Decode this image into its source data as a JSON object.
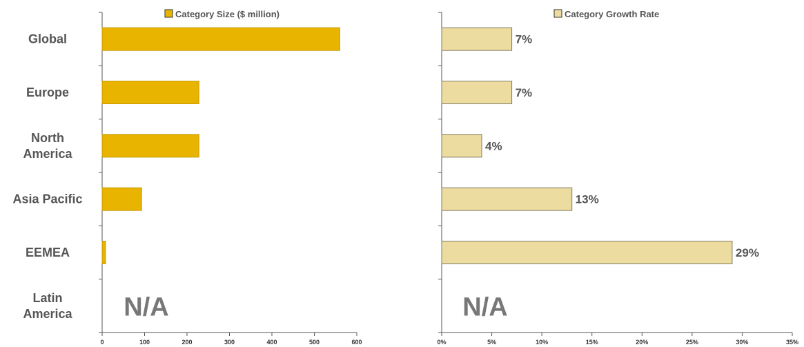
{
  "chart_data": [
    {
      "type": "bar",
      "orientation": "horizontal",
      "legend": "Category Size ($ million)",
      "legend_position": "top",
      "categories": [
        "Global",
        "Europe",
        "North\nAmerica",
        "Asia Pacific",
        "EEMEA",
        "Latin\nAmerica"
      ],
      "values": [
        560,
        228,
        228,
        93,
        8,
        null
      ],
      "xlim": [
        0,
        600
      ],
      "xticks": [
        "0",
        "100",
        "200",
        "300",
        "400",
        "500",
        "600"
      ],
      "na_label": "N/A",
      "grid": false,
      "color": "#e8b400"
    },
    {
      "type": "bar",
      "orientation": "horizontal",
      "legend": "Category Growth Rate",
      "legend_position": "top",
      "categories": [
        "Global",
        "Europe",
        "North\nAmerica",
        "Asia Pacific",
        "EEMEA",
        "Latin\nAmerica"
      ],
      "values": [
        7,
        7,
        4,
        13,
        29,
        null
      ],
      "data_labels": [
        "7%",
        "7%",
        "4%",
        "13%",
        "29%",
        ""
      ],
      "xlim": [
        0,
        35
      ],
      "xticks": [
        "0%",
        "5%",
        "10%",
        "15%",
        "20%",
        "25%",
        "30%",
        "35%"
      ],
      "na_label": "N/A",
      "grid": false,
      "color": "#ecdca0"
    }
  ]
}
